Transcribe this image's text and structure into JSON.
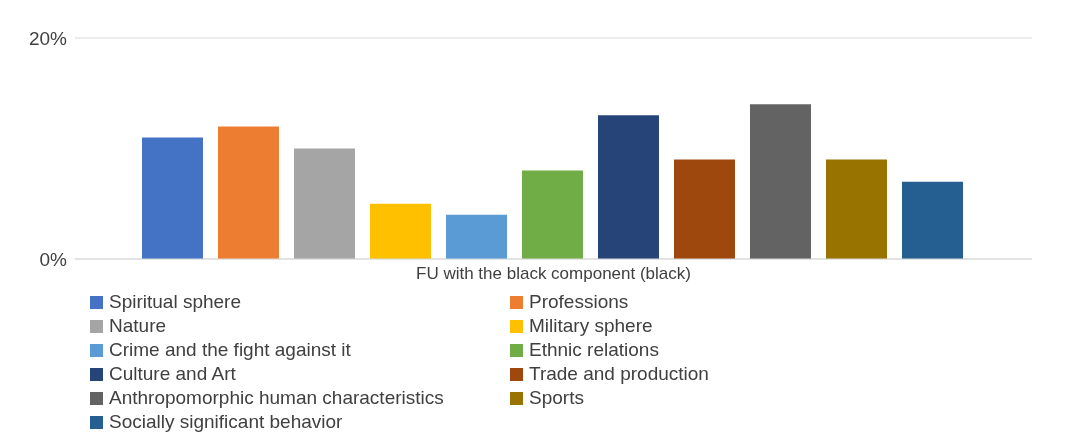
{
  "chart_data": {
    "type": "bar",
    "categories": [
      "FU with the black component (black)"
    ],
    "series": [
      {
        "name": "Spiritual sphere",
        "color": "#4472c4",
        "values": [
          11
        ]
      },
      {
        "name": "Professions",
        "color": "#ed7d31",
        "values": [
          12
        ]
      },
      {
        "name": "Nature",
        "color": "#a5a5a5",
        "values": [
          10
        ]
      },
      {
        "name": "Military sphere",
        "color": "#ffc000",
        "values": [
          5
        ]
      },
      {
        "name": "Crime and the fight against it",
        "color": "#5b9bd5",
        "values": [
          4
        ]
      },
      {
        "name": "Ethnic relations",
        "color": "#70ad47",
        "values": [
          8
        ]
      },
      {
        "name": "Culture and Art",
        "color": "#264478",
        "values": [
          13
        ]
      },
      {
        "name": "Trade and production",
        "color": "#9e480e",
        "values": [
          9
        ]
      },
      {
        "name": "Anthropomorphic human characteristics",
        "color": "#636363",
        "values": [
          14
        ]
      },
      {
        "name": "Sports",
        "color": "#997300",
        "values": [
          9
        ]
      },
      {
        "name": "Socially significant behavior",
        "color": "#255e91",
        "values": [
          7
        ]
      }
    ],
    "ylim": [
      0,
      20
    ],
    "yticks": [
      {
        "value": 0,
        "label": "0%"
      },
      {
        "value": 20,
        "label": "20%"
      }
    ],
    "grid": "y",
    "legend": "bottom"
  }
}
